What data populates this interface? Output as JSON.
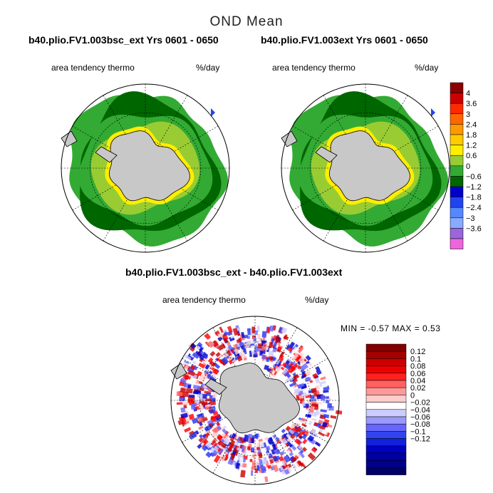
{
  "main_title": "OND Mean",
  "panels": [
    {
      "title": "b40.plio.FV1.003bsc_ext  Yrs 0601 - 0650",
      "variable": "area tendency thermo",
      "units": "%/day"
    },
    {
      "title": "b40.plio.FV1.003ext  Yrs 0601 - 0650",
      "variable": "area tendency thermo",
      "units": "%/day"
    },
    {
      "title": "b40.plio.FV1.003bsc_ext - b40.plio.FV1.003ext",
      "variable": "area tendency thermo",
      "units": "%/day"
    }
  ],
  "minmax": {
    "label": "MIN =   -0.57  MAX =    0.53"
  },
  "chart_data": [
    {
      "type": "heatmap",
      "title": "b40.plio.FV1.003bsc_ext  Yrs 0601 - 0650",
      "subtitle": "area tendency thermo",
      "units": "%/day",
      "projection": "south-polar-stereographic",
      "colorbar": {
        "labels": [
          "4",
          "3.6",
          "3",
          "2.4",
          "1.8",
          "1.2",
          "0.6",
          "0",
          "-0.6",
          "-1.2",
          "-1.8",
          "-2.4",
          "-3",
          "-3.6"
        ],
        "colors": [
          "#8b0000",
          "#cc0000",
          "#ff2a00",
          "#ff6600",
          "#ff9900",
          "#ffcc00",
          "#ffee00",
          "#99cc33",
          "#33aa33",
          "#006600",
          "#0000cc",
          "#2244ee",
          "#5588ff",
          "#88aaff",
          "#9966dd",
          "#ee66dd"
        ]
      }
    },
    {
      "type": "heatmap",
      "title": "b40.plio.FV1.003ext  Yrs 0601 - 0650",
      "subtitle": "area tendency thermo",
      "units": "%/day",
      "projection": "south-polar-stereographic"
    },
    {
      "type": "heatmap",
      "title": "b40.plio.FV1.003bsc_ext - b40.plio.FV1.003ext",
      "subtitle": "area tendency thermo",
      "units": "%/day",
      "projection": "south-polar-stereographic",
      "min": -0.57,
      "max": 0.53,
      "colorbar": {
        "labels": [
          "0.12",
          "0.1",
          "0.08",
          "0.06",
          "0.04",
          "0.02",
          "0",
          "-0.02",
          "-0.04",
          "-0.06",
          "-0.08",
          "-0.1",
          "-0.12"
        ],
        "colors": [
          "#800000",
          "#a50000",
          "#cc0000",
          "#ee0000",
          "#ff2020",
          "#ff6060",
          "#ff9999",
          "#ffcccc",
          "#ffffff",
          "#ccccff",
          "#9999ff",
          "#6666ff",
          "#3344ee",
          "#1122dd",
          "#0000c0",
          "#0000a0",
          "#000088",
          "#000066"
        ]
      }
    }
  ]
}
